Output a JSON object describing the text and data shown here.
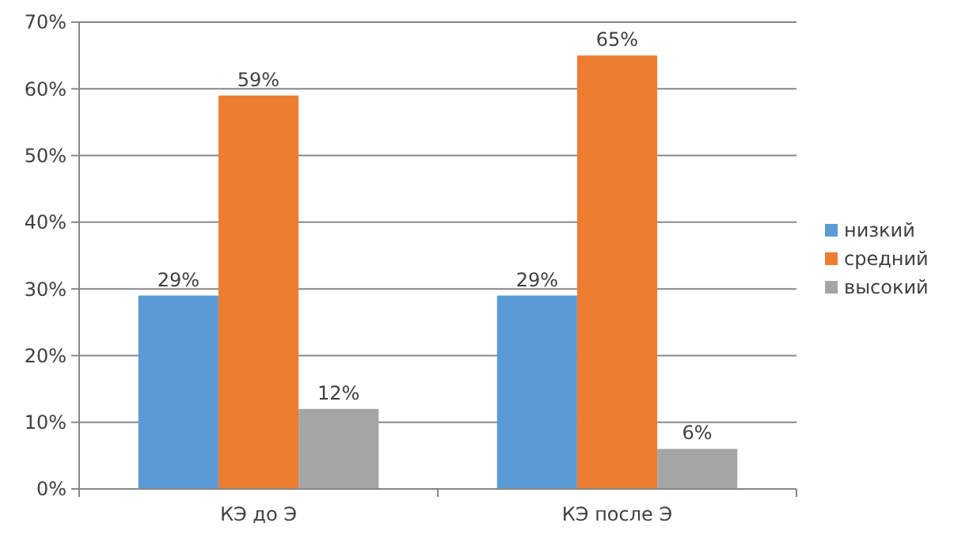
{
  "chart_data": {
    "type": "bar",
    "categories": [
      "КЭ до Э",
      "КЭ после Э"
    ],
    "series": [
      {
        "name": "низкий",
        "color": "#5b9bd5",
        "values": [
          29,
          29
        ],
        "value_labels": [
          "29%",
          "29%"
        ]
      },
      {
        "name": "средний",
        "color": "#ed7d31",
        "values": [
          59,
          65
        ],
        "value_labels": [
          "59%",
          "65%"
        ]
      },
      {
        "name": "высокий",
        "color": "#a5a5a5",
        "values": [
          12,
          6
        ],
        "value_labels": [
          "12%",
          "6%"
        ]
      }
    ],
    "ylim": [
      0,
      70
    ],
    "yticks": [
      {
        "value": 0,
        "label": "0%"
      },
      {
        "value": 10,
        "label": "10%"
      },
      {
        "value": 20,
        "label": "20%"
      },
      {
        "value": 30,
        "label": "30%"
      },
      {
        "value": 40,
        "label": "40%"
      },
      {
        "value": 50,
        "label": "50%"
      },
      {
        "value": 60,
        "label": "60%"
      },
      {
        "value": 70,
        "label": "70%"
      }
    ],
    "grid": "y",
    "legend": "right"
  }
}
